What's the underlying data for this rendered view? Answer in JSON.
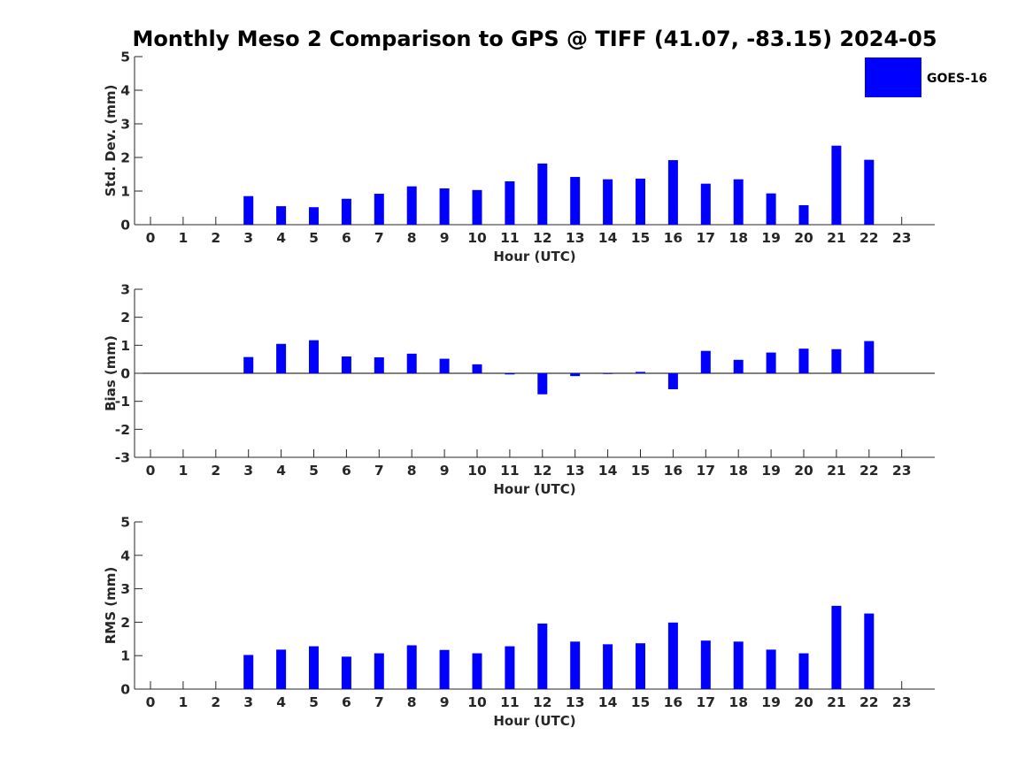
{
  "chart_data": {
    "type": "bar",
    "title": "Monthly Meso 2 Comparison to GPS @ TIFF (41.07, -83.15) 2024-05",
    "legend": {
      "entries": [
        "GOES-16"
      ],
      "placement": "top-right"
    },
    "bar_color": "#0000ff",
    "categories": [
      0,
      1,
      2,
      3,
      4,
      5,
      6,
      7,
      8,
      9,
      10,
      11,
      12,
      13,
      14,
      15,
      16,
      17,
      18,
      19,
      20,
      21,
      22,
      23
    ],
    "panels": [
      {
        "id": "std",
        "ylabel": "Std. Dev. (mm)",
        "xlabel": "Hour (UTC)",
        "ylim": [
          0,
          5
        ],
        "yticks": [
          0,
          1,
          2,
          3,
          4,
          5
        ],
        "series": [
          {
            "name": "GOES-16",
            "values": [
              null,
              null,
              null,
              0.85,
              0.55,
              0.52,
              0.77,
              0.92,
              1.14,
              1.08,
              1.03,
              1.29,
              1.82,
              1.42,
              1.35,
              1.37,
              1.92,
              1.22,
              1.35,
              0.93,
              0.58,
              2.35,
              1.93,
              null
            ]
          }
        ]
      },
      {
        "id": "bias",
        "ylabel": "Bias (mm)",
        "xlabel": "Hour (UTC)",
        "ylim": [
          -3,
          3
        ],
        "yticks": [
          -3,
          -2,
          -1,
          0,
          1,
          2,
          3
        ],
        "series": [
          {
            "name": "GOES-16",
            "values": [
              null,
              null,
              null,
              0.58,
              1.05,
              1.18,
              0.6,
              0.57,
              0.7,
              0.52,
              0.32,
              -0.04,
              -0.75,
              -0.1,
              0.0,
              0.05,
              -0.57,
              0.8,
              0.48,
              0.74,
              0.88,
              0.86,
              1.15,
              null
            ]
          }
        ]
      },
      {
        "id": "rms",
        "ylabel": "RMS (mm)",
        "xlabel": "Hour (UTC)",
        "ylim": [
          0,
          5
        ],
        "yticks": [
          0,
          1,
          2,
          3,
          4,
          5
        ],
        "series": [
          {
            "name": "GOES-16",
            "values": [
              null,
              null,
              null,
              1.02,
              1.18,
              1.28,
              0.97,
              1.07,
              1.31,
              1.17,
              1.07,
              1.28,
              1.96,
              1.42,
              1.34,
              1.37,
              1.99,
              1.45,
              1.42,
              1.18,
              1.07,
              2.49,
              2.26,
              null
            ]
          }
        ]
      }
    ]
  }
}
